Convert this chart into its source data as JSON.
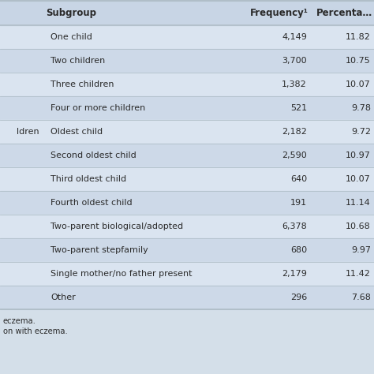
{
  "col_headers": [
    "Subgroup",
    "Frequency¹",
    "Percenta…"
  ],
  "left_labels": [
    "",
    "",
    "",
    "",
    "ldren",
    "",
    "",
    "",
    "",
    "",
    "",
    ""
  ],
  "rows": [
    [
      "One child",
      "4,149",
      "11.82"
    ],
    [
      "Two children",
      "3,700",
      "10.75"
    ],
    [
      "Three children",
      "1,382",
      "10.07"
    ],
    [
      "Four or more children",
      "521",
      "9.78"
    ],
    [
      "Oldest child",
      "2,182",
      "9.72"
    ],
    [
      "Second oldest child",
      "2,590",
      "10.97"
    ],
    [
      "Third oldest child",
      "640",
      "10.07"
    ],
    [
      "Fourth oldest child",
      "191",
      "11.14"
    ],
    [
      "Two-parent biological/adopted",
      "6,378",
      "10.68"
    ],
    [
      "Two-parent stepfamily",
      "680",
      "9.97"
    ],
    [
      "Single mother/no father present",
      "2,179",
      "11.42"
    ],
    [
      "Other",
      "296",
      "7.68"
    ]
  ],
  "footnotes": [
    "eczema.",
    "on with eczema."
  ],
  "bg_light": "#d9e4f0",
  "bg_dark": "#c8d8ea",
  "row_bg_odd": "#cdd9e8",
  "row_bg_even": "#dae4f0",
  "header_bg": "#c8d5e5",
  "text_color": "#2a2a2a",
  "line_color": "#b0bec8",
  "font_size": 8.0,
  "header_font_size": 8.5,
  "footnote_font_size": 7.2,
  "fig_bg": "#d4dfe9"
}
